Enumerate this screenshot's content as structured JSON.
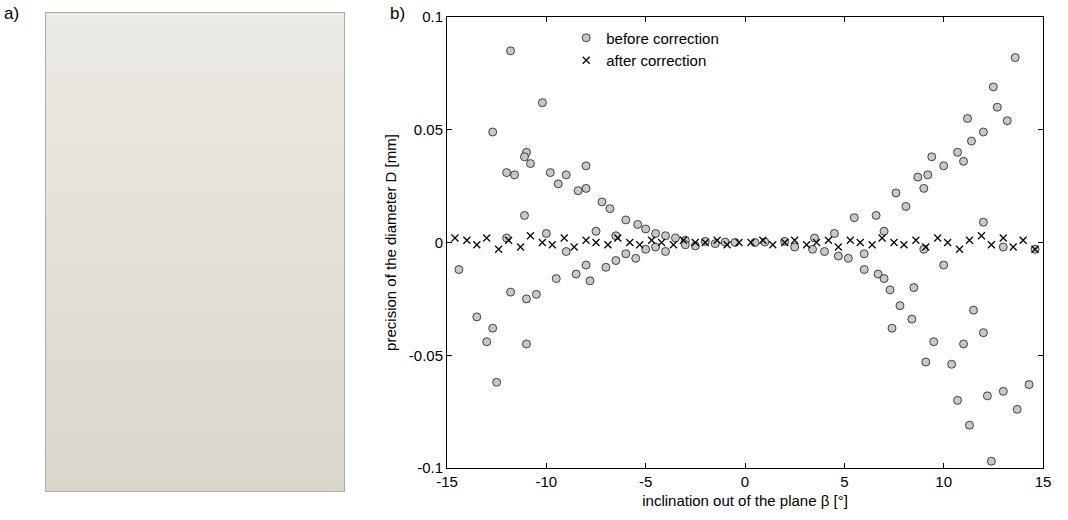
{
  "panels": {
    "a": {
      "label": "a)"
    },
    "b": {
      "label": "b)"
    }
  },
  "chart_data": {
    "type": "scatter",
    "xlabel": "inclination out of the plane β [°]",
    "ylabel": "precision of the diameter D [mm]",
    "xlim": [
      -15,
      15
    ],
    "ylim": [
      -0.1,
      0.1
    ],
    "xticks": [
      -15,
      -10,
      -5,
      0,
      5,
      10,
      15
    ],
    "yticks": [
      -0.1,
      -0.05,
      0,
      0.05,
      0.1
    ],
    "grid": false,
    "legend": "top",
    "series": [
      {
        "name": "before correction",
        "color": "#c8c8c8",
        "marker": "circle",
        "x": [
          -11.8,
          -10.2,
          -12.7,
          -11,
          -11.1,
          -10.8,
          -12,
          -11.6,
          -9.8,
          -9,
          -8,
          -8,
          -9.4,
          -8.4,
          -7.2,
          -6.8,
          -11.1,
          -6,
          -5.4,
          -5,
          -4.5,
          -4,
          -3.5,
          -3,
          -2,
          -1,
          -14.4,
          -13.5,
          -13,
          -12.7,
          -12.5,
          -11,
          -11,
          -10.5,
          -11.8,
          -9.5,
          -8.5,
          -7.8,
          -8,
          -7,
          -6.5,
          -6,
          -5.5,
          -5,
          -4.5,
          -4,
          -3,
          -2.5,
          -1.5,
          -0.5,
          -9,
          -10,
          -12,
          -7.5,
          -6.5,
          13.6,
          12.5,
          11.2,
          12.7,
          13.2,
          12,
          11.4,
          10.7,
          9.4,
          11,
          10,
          9.2,
          8.7,
          9,
          7.6,
          8.1,
          6.6,
          5.5,
          12,
          13,
          14.6,
          4.5,
          3.5,
          2,
          1,
          2.5,
          3.4,
          4,
          4.7,
          5.2,
          6,
          6.7,
          7,
          7.3,
          7.8,
          7.4,
          8.4,
          9.5,
          9.1,
          10.4,
          11,
          10.7,
          11.3,
          12.2,
          12.4,
          13,
          13.7,
          14.3,
          10,
          8.5,
          6,
          9,
          11.5,
          12,
          7,
          0.5
        ],
        "values": [
          0.085,
          0.062,
          0.049,
          0.04,
          0.038,
          0.035,
          0.031,
          0.03,
          0.031,
          0.03,
          0.024,
          0.034,
          0.026,
          0.023,
          0.018,
          0.015,
          0.012,
          0.01,
          0.008,
          0.006,
          0.004,
          0.003,
          0.002,
          0.001,
          0.0005,
          0.0002,
          -0.012,
          -0.033,
          -0.044,
          -0.038,
          -0.062,
          -0.045,
          -0.025,
          -0.023,
          -0.022,
          -0.016,
          -0.014,
          -0.017,
          -0.01,
          -0.011,
          -0.008,
          -0.005,
          -0.007,
          -0.003,
          -0.002,
          -0.004,
          -0.001,
          -0.0015,
          -0.0005,
          0,
          -0.004,
          0.004,
          0.002,
          0.005,
          0.003,
          0.082,
          0.069,
          0.055,
          0.06,
          0.054,
          0.049,
          0.045,
          0.04,
          0.038,
          0.036,
          0.034,
          0.03,
          0.029,
          0.024,
          0.022,
          0.016,
          0.012,
          0.011,
          0.009,
          -0.002,
          -0.003,
          0.004,
          0.002,
          0.0005,
          0.0002,
          -0.002,
          -0.003,
          -0.004,
          -0.006,
          -0.007,
          -0.012,
          -0.014,
          -0.016,
          -0.021,
          -0.028,
          -0.038,
          -0.034,
          -0.044,
          -0.053,
          -0.054,
          -0.045,
          -0.07,
          -0.081,
          -0.068,
          -0.097,
          -0.066,
          -0.074,
          -0.063,
          -0.01,
          -0.02,
          -0.005,
          -0.003,
          -0.03,
          -0.04,
          0.005,
          0
        ]
      },
      {
        "name": "after correction",
        "color": "#000000",
        "marker": "x",
        "x": [
          -14.6,
          -14,
          -13.5,
          -13,
          -12.4,
          -11.9,
          -11.3,
          -10.8,
          -10.2,
          -9.7,
          -9.1,
          -8.6,
          -8,
          -7.5,
          -6.9,
          -6.4,
          -5.8,
          -5.3,
          -4.7,
          -4.2,
          -3.6,
          -3.1,
          -2.5,
          -2,
          -1.4,
          -0.9,
          -0.3,
          0.3,
          0.9,
          1.4,
          2,
          2.5,
          3.1,
          3.6,
          4.2,
          4.7,
          5.3,
          5.8,
          6.4,
          6.9,
          7.5,
          8,
          8.6,
          9.1,
          9.7,
          10.2,
          10.8,
          11.3,
          11.9,
          12.4,
          13,
          13.5,
          14,
          14.6
        ],
        "values": [
          0.002,
          0.001,
          -0.001,
          0.002,
          -0.003,
          0.001,
          -0.002,
          0.003,
          0.0,
          -0.001,
          0.002,
          -0.002,
          0.001,
          0.0,
          -0.001,
          0.002,
          0.0,
          -0.001,
          0.001,
          0.0,
          -0.001,
          0.001,
          0.0,
          0.0,
          0.001,
          -0.001,
          0.0,
          0.0,
          0.001,
          -0.001,
          0.0,
          0.001,
          -0.001,
          0.0,
          0.001,
          -0.002,
          0.001,
          0.0,
          -0.001,
          0.002,
          0.0,
          -0.001,
          0.001,
          -0.002,
          0.002,
          0.0,
          -0.003,
          0.001,
          0.003,
          -0.001,
          0.002,
          -0.002,
          0.001,
          -0.003
        ]
      }
    ]
  }
}
